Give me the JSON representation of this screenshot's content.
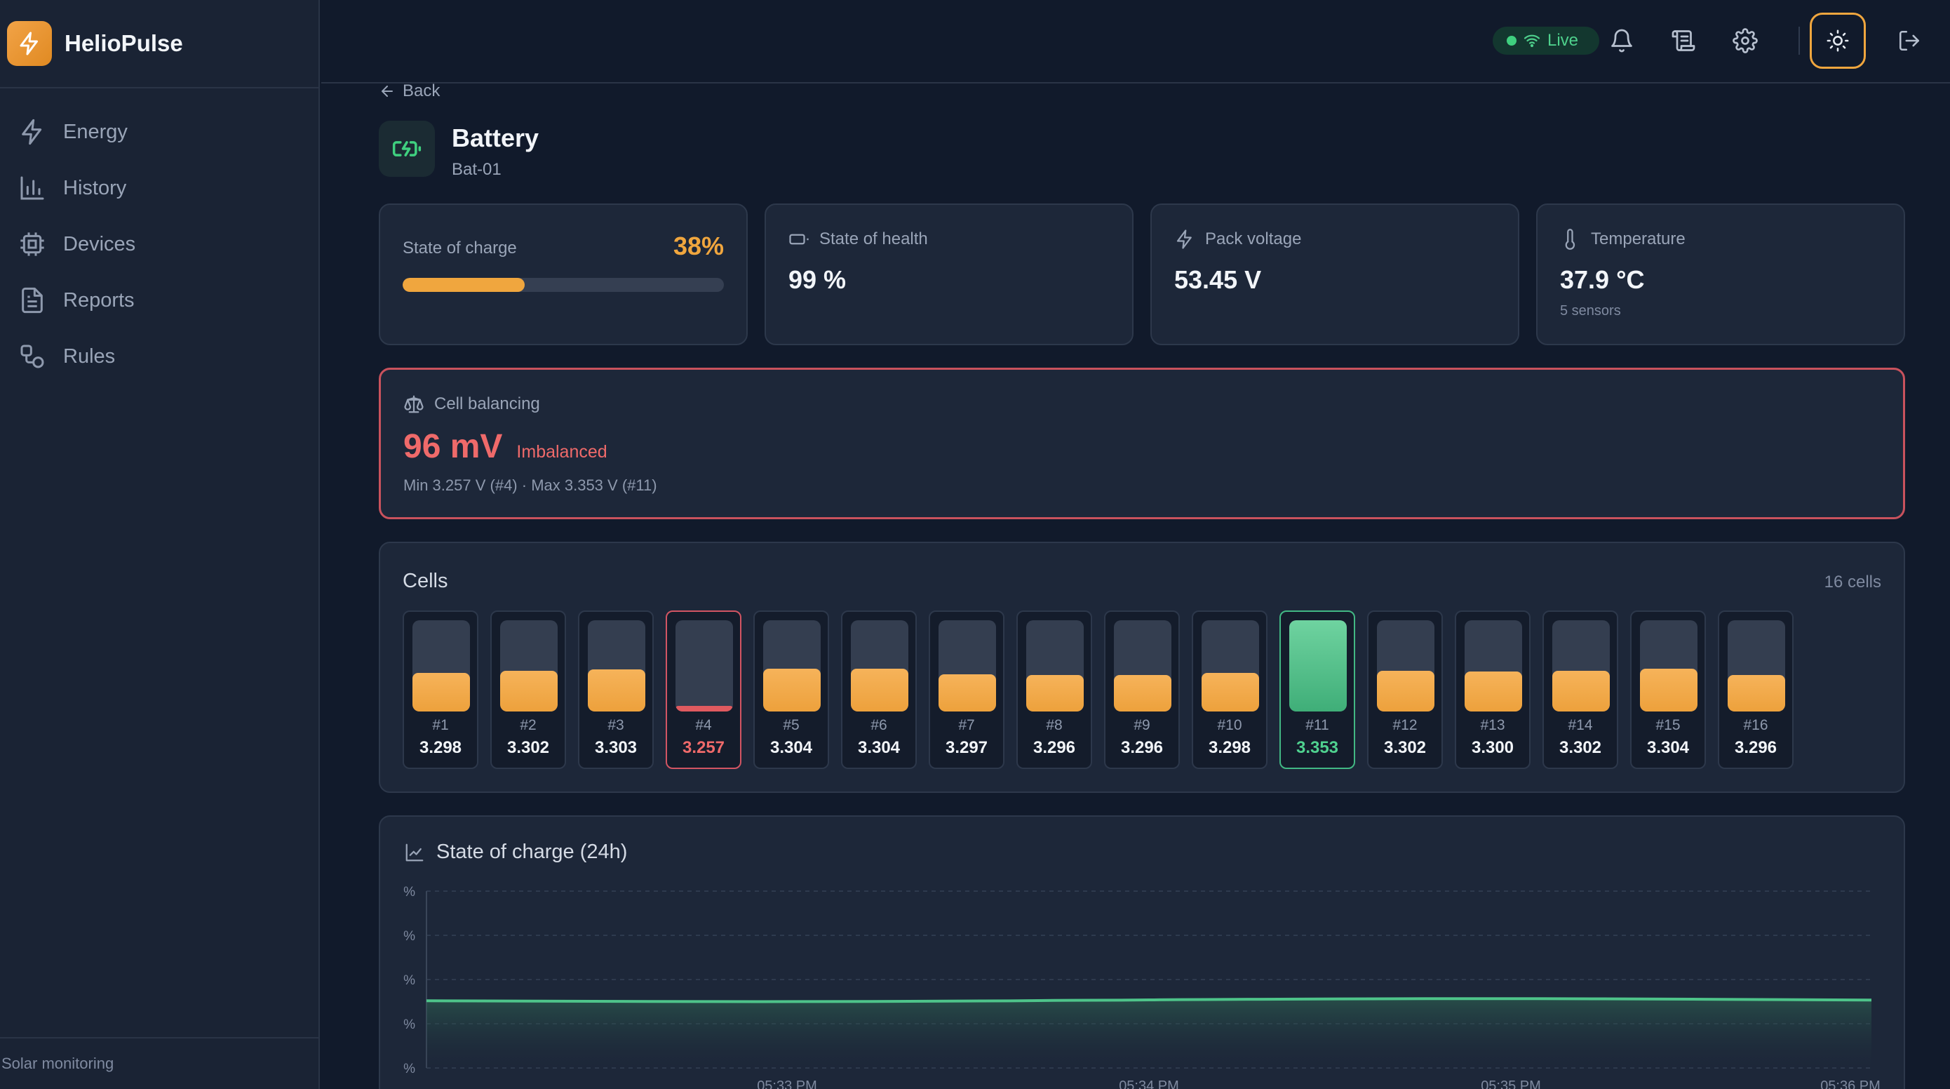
{
  "brand": {
    "name": "HelioPulse"
  },
  "sidebar": {
    "items": [
      {
        "label": "Energy",
        "icon": "bolt-icon"
      },
      {
        "label": "History",
        "icon": "bar-chart-icon"
      },
      {
        "label": "Devices",
        "icon": "chip-icon"
      },
      {
        "label": "Reports",
        "icon": "document-icon"
      },
      {
        "label": "Rules",
        "icon": "rules-icon"
      }
    ],
    "footer": "Solar monitoring"
  },
  "header": {
    "live_label": "Live",
    "icons": [
      "bell-icon",
      "scroll-icon",
      "gear-icon",
      "sun-icon",
      "logout-icon"
    ]
  },
  "page": {
    "back_label": "Back",
    "title": "Battery",
    "subtitle": "Bat-01"
  },
  "kpis": {
    "soc": {
      "label": "State of charge",
      "value": "38%",
      "fraction": 0.38
    },
    "soh": {
      "label": "State of health",
      "value": "99 %"
    },
    "voltage": {
      "label": "Pack voltage",
      "value": "53.45 V"
    },
    "temperature": {
      "label": "Temperature",
      "value": "37.9 °C",
      "note": "5 sensors"
    }
  },
  "balancing": {
    "label": "Cell balancing",
    "value": "96 mV",
    "status": "Imbalanced",
    "detail": "Min 3.257 V (#4) · Max 3.353 V (#11)"
  },
  "cells": {
    "title": "Cells",
    "count_label": "16 cells",
    "items": [
      {
        "index": "#1",
        "voltage": "3.298",
        "level": 0.42
      },
      {
        "index": "#2",
        "voltage": "3.302",
        "level": 0.45
      },
      {
        "index": "#3",
        "voltage": "3.303",
        "level": 0.46
      },
      {
        "index": "#4",
        "voltage": "3.257",
        "level": 0.05,
        "state": "low"
      },
      {
        "index": "#5",
        "voltage": "3.304",
        "level": 0.47
      },
      {
        "index": "#6",
        "voltage": "3.304",
        "level": 0.47
      },
      {
        "index": "#7",
        "voltage": "3.297",
        "level": 0.41
      },
      {
        "index": "#8",
        "voltage": "3.296",
        "level": 0.4
      },
      {
        "index": "#9",
        "voltage": "3.296",
        "level": 0.4
      },
      {
        "index": "#10",
        "voltage": "3.298",
        "level": 0.42
      },
      {
        "index": "#11",
        "voltage": "3.353",
        "level": 1.0,
        "state": "high"
      },
      {
        "index": "#12",
        "voltage": "3.302",
        "level": 0.45
      },
      {
        "index": "#13",
        "voltage": "3.300",
        "level": 0.44
      },
      {
        "index": "#14",
        "voltage": "3.302",
        "level": 0.45
      },
      {
        "index": "#15",
        "voltage": "3.304",
        "level": 0.47
      },
      {
        "index": "#16",
        "voltage": "3.296",
        "level": 0.4
      }
    ]
  },
  "chart_data": {
    "type": "area",
    "title": "State of charge (24h)",
    "y_tick_labels": [
      "%",
      "%",
      "%",
      "%",
      "%"
    ],
    "x_tick_labels": [
      "05:33 PM",
      "05:34 PM",
      "05:35 PM",
      "05:36 PM"
    ],
    "ylim": [
      0,
      100
    ],
    "grid": true,
    "series": [
      {
        "values": [
          38.0,
          37.8,
          37.6,
          37.5,
          37.6,
          37.9,
          38.3,
          38.7,
          39.0,
          39.2,
          39.2,
          39.0,
          38.7,
          38.4
        ]
      }
    ],
    "color": "#4ec48a"
  },
  "colors": {
    "accent": "#f0a63e",
    "danger": "#e05a5f",
    "success": "#4fd18f",
    "background": "#111a2b"
  }
}
